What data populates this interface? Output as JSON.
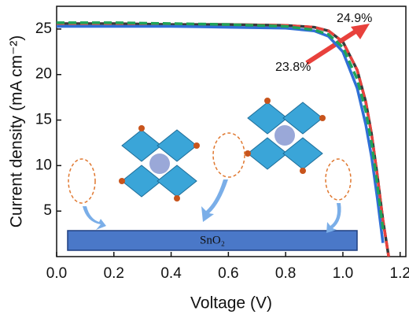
{
  "chart_data": {
    "type": "line",
    "x_label": "Voltage (V)",
    "y_label": "Current density (mA cm⁻²)",
    "x": [
      0,
      0.2,
      0.4,
      0.6,
      0.8,
      0.9,
      0.95,
      1.0,
      1.05,
      1.08,
      1.1,
      1.12,
      1.14,
      1.16
    ],
    "series": [
      {
        "color": "#3a3a3a",
        "dash": false,
        "values": [
          25.6,
          25.6,
          25.5,
          25.5,
          25.4,
          25.2,
          24.8,
          23.6,
          20.5,
          17,
          13.5,
          9,
          4,
          0
        ]
      },
      {
        "color": "#e8413c",
        "dash": true,
        "values": [
          25.6,
          25.6,
          25.5,
          25.5,
          25.4,
          25.2,
          24.8,
          23.6,
          20.5,
          17,
          13.5,
          9,
          4,
          0
        ]
      },
      {
        "color": "#2f6fd6",
        "dash": false,
        "values": [
          25.3,
          25.3,
          25.3,
          25.2,
          25.1,
          24.8,
          24.2,
          22.5,
          18.5,
          14.5,
          11,
          6.5,
          1.5,
          null
        ]
      },
      {
        "color": "#1fa35a",
        "dash": true,
        "values": [
          25.7,
          25.7,
          25.6,
          25.5,
          25.3,
          24.9,
          24.4,
          23,
          19.5,
          16,
          12.5,
          8,
          3,
          null
        ]
      }
    ],
    "xlim": [
      0,
      1.22
    ],
    "ylim": [
      0,
      27.5
    ],
    "xticks": [
      {
        "value": 0,
        "label": "0.0"
      },
      0.2,
      0.4,
      0.6,
      0.8,
      {
        "value": 1,
        "label": "1.0"
      },
      1.2
    ],
    "yticks": [
      5,
      10,
      15,
      20,
      25
    ],
    "annotations": [
      "24.9%",
      "23.8%",
      "SnO₂"
    ]
  }
}
